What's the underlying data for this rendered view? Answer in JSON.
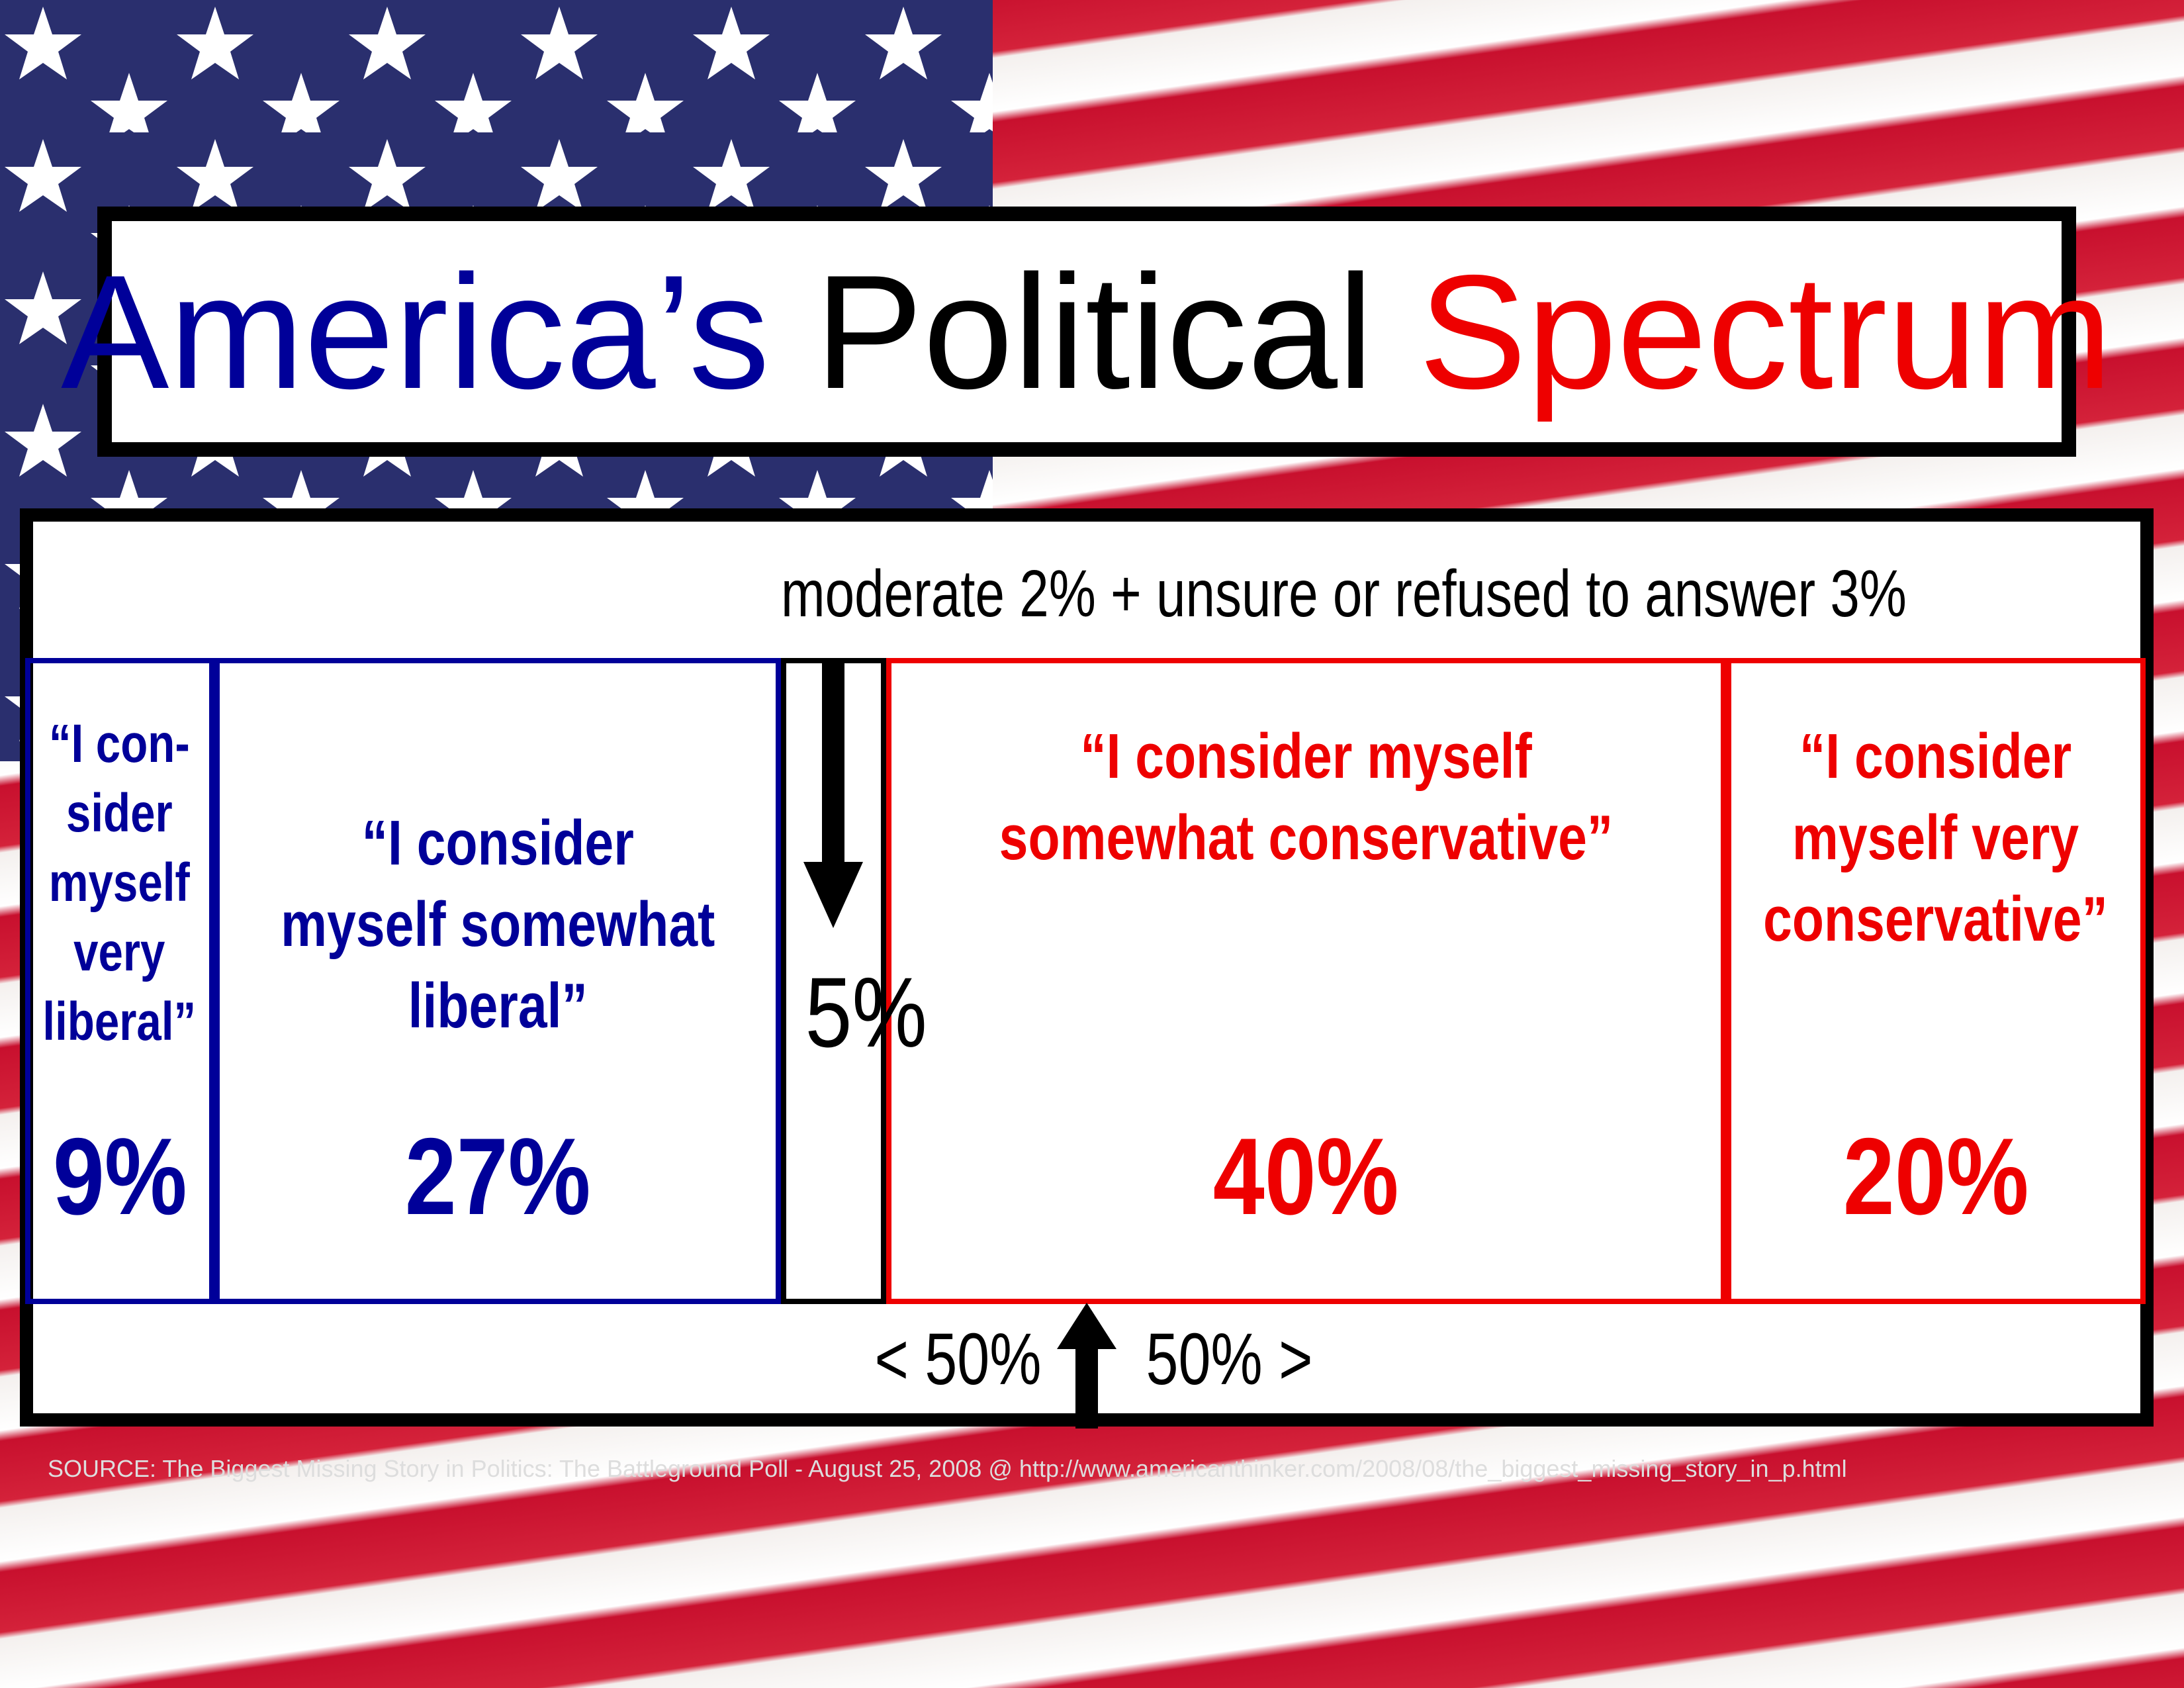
{
  "title": {
    "part1": "America’s",
    "part2": "Political",
    "part3": "Spectrum"
  },
  "note": "moderate 2% + unsure or refused to answer 3%",
  "segments": [
    {
      "label": "“I con-sider myself very liberal”",
      "value": 9,
      "value_label": "9%",
      "color": "#000099"
    },
    {
      "label": "“I consider myself somewhat liberal”",
      "value": 27,
      "value_label": "27%",
      "color": "#000099"
    },
    {
      "value": 5,
      "value_label": "5%",
      "color": "#000000"
    },
    {
      "label": "“I consider myself somewhat conservative”",
      "value": 40,
      "value_label": "40%",
      "color": "#ee0000"
    },
    {
      "label": "“I consider myself very conservative”",
      "value": 20,
      "value_label": "20%",
      "color": "#ee0000"
    }
  ],
  "midline": {
    "left": "< 50%",
    "right": "50% >"
  },
  "source": "SOURCE: The Biggest Missing Story in Politics: The Battleground Poll - August 25, 2008 @ http://www.americanthinker.com/2008/08/the_biggest_missing_story_in_p.html"
}
